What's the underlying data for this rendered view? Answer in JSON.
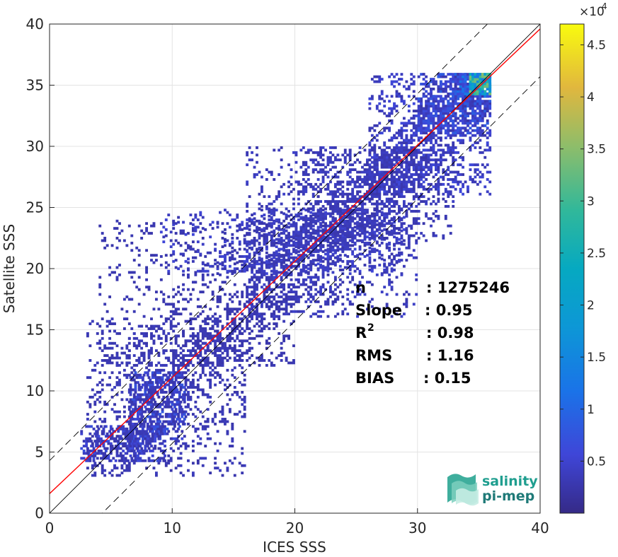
{
  "chart_data": {
    "type": "heatmap",
    "xlabel": "ICES SSS",
    "ylabel": "Satellite SSS",
    "xlim": [
      0,
      40
    ],
    "ylim": [
      0,
      40
    ],
    "x_ticks": [
      "0",
      "10",
      "20",
      "30",
      "40"
    ],
    "y_ticks": [
      "0",
      "5",
      "10",
      "15",
      "20",
      "25",
      "30",
      "35",
      "40"
    ],
    "grid": true,
    "colorbar": {
      "range": [
        0,
        4.7
      ],
      "multiplier": "×10",
      "exponent": "4",
      "ticks": [
        "0.5",
        "1",
        "1.5",
        "2",
        "2.5",
        "3",
        "3.5",
        "4",
        "4.5"
      ],
      "colormap": "parula"
    },
    "lines": [
      {
        "name": "identity",
        "slope": 1.0,
        "intercept": 0.0,
        "color": "#000000",
        "style": "solid"
      },
      {
        "name": "identity-plus",
        "slope": 1.0,
        "intercept": 4.3,
        "color": "#000000",
        "style": "dashed"
      },
      {
        "name": "identity-minus",
        "slope": 1.0,
        "intercept": -4.3,
        "color": "#000000",
        "style": "dashed"
      },
      {
        "name": "regression",
        "slope": 0.95,
        "intercept": 1.6,
        "color": "#ff0000",
        "style": "solid"
      }
    ],
    "density_regions": [
      {
        "x": [
          2.5,
          9.5
        ],
        "y": [
          4.2,
          7.2
        ],
        "level": 0.25
      },
      {
        "x": [
          6.5,
          11
        ],
        "y": [
          6,
          11.5
        ],
        "level": 0.3
      },
      {
        "x": [
          4,
          20
        ],
        "y": [
          12,
          24
        ],
        "level": 0.05
      },
      {
        "x": [
          9,
          29
        ],
        "y": [
          19.5,
          24.8
        ],
        "level": 0.18
      },
      {
        "x": [
          20,
          33
        ],
        "y": [
          22,
          30
        ],
        "level": 0.1
      },
      {
        "x": [
          26,
          36
        ],
        "y": [
          26,
          36
        ],
        "level": 0.2
      },
      {
        "x": [
          30,
          36
        ],
        "y": [
          31,
          36
        ],
        "level": 0.35
      },
      {
        "x": [
          33,
          36
        ],
        "y": [
          34,
          36
        ],
        "level": 0.6
      },
      {
        "x": [
          3,
          16
        ],
        "y": [
          3,
          16
        ],
        "level": 0.08
      },
      {
        "x": [
          16,
          30
        ],
        "y": [
          16,
          30
        ],
        "level": 0.12
      }
    ],
    "stats": [
      {
        "label": "n",
        "value": ": 1275246"
      },
      {
        "label": "Slope",
        "value": ": 0.95"
      },
      {
        "label": "R",
        "sup": "2",
        "value": ": 0.98"
      },
      {
        "label": "RMS",
        "value": ": 1.16"
      },
      {
        "label": "BIAS",
        "value": ": 0.15"
      }
    ]
  },
  "logo": {
    "line1": "salinity",
    "line2": "pi-mep",
    "color": "#1f9e8f"
  }
}
